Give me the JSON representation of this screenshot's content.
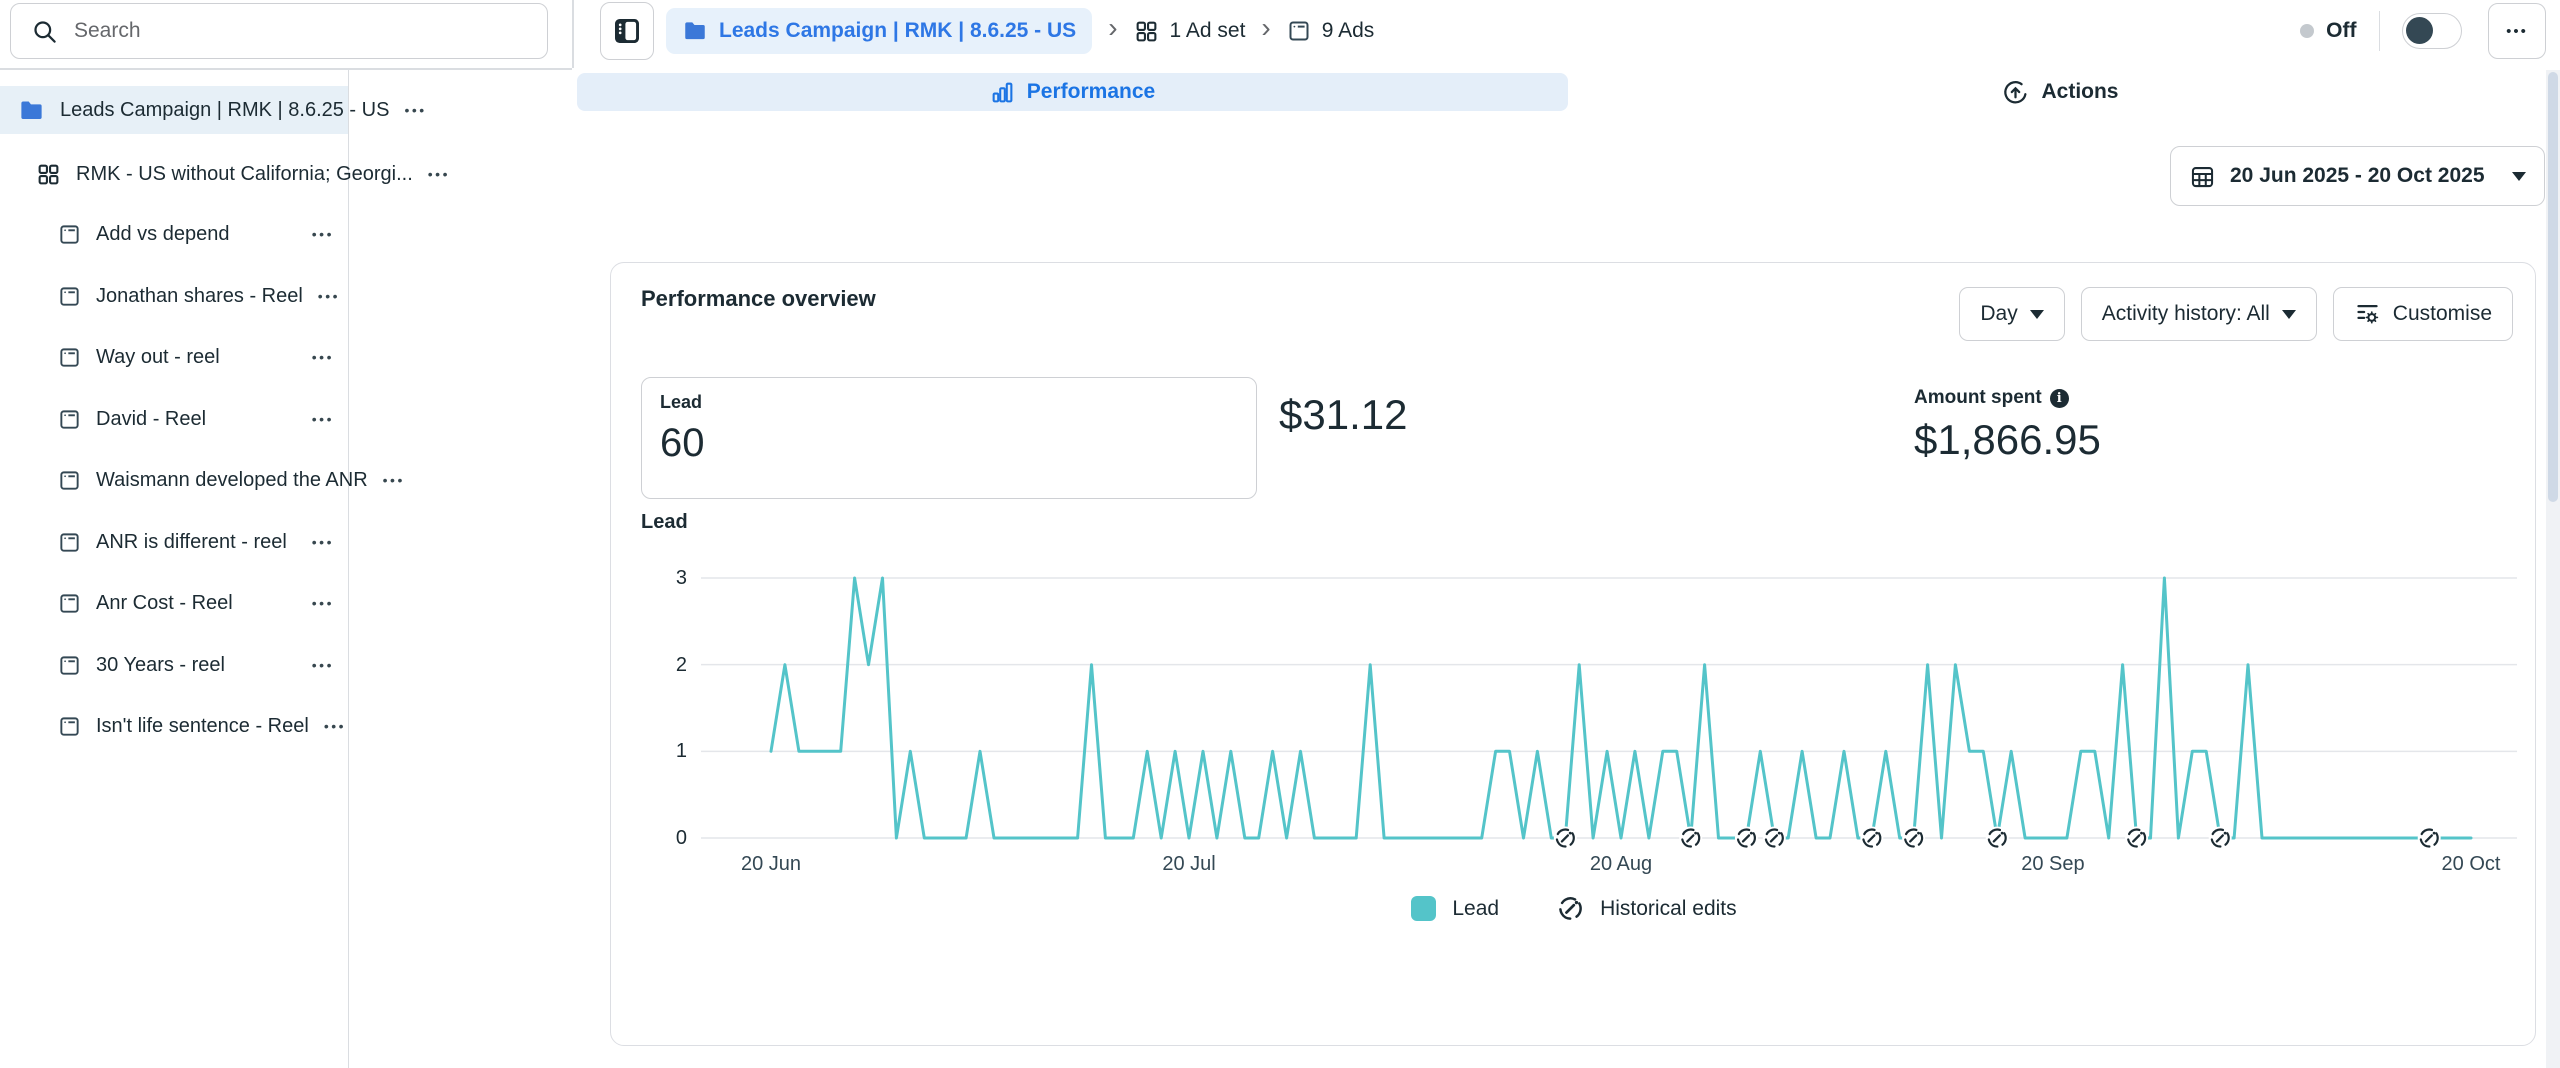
{
  "topbar": {
    "search": {
      "placeholder": "Search"
    },
    "breadcrumb": {
      "campaign": "Leads Campaign | RMK | 8.6.25 - US",
      "adset_count": "1 Ad set",
      "ads_count": "9 Ads"
    },
    "status": {
      "label": "Off",
      "enabled": false
    },
    "icons": {
      "more": "•••"
    }
  },
  "sidebar": {
    "campaign": {
      "label": "Leads Campaign | RMK | 8.6.25 - US",
      "selected": true
    },
    "adset": {
      "label": "RMK - US without California; Georgi..."
    },
    "ads": [
      "Add vs depend",
      "Jonathan shares - Reel",
      "Way out - reel",
      "David - Reel",
      "Waismann developed the ANR",
      "ANR is different - reel",
      "Anr Cost - Reel",
      "30 Years - reel",
      "Isn't life sentence - Reel"
    ]
  },
  "tabs": {
    "performance": "Performance",
    "actions": "Actions",
    "active": "Performance"
  },
  "date_range": {
    "label": "20 Jun 2025 - 20 Oct 2025"
  },
  "overview": {
    "title": "Performance overview",
    "granularity_button": "Day",
    "activity_button": "Activity history: All",
    "customise_button": "Customise",
    "lead_metric": {
      "label": "Lead",
      "value": "60"
    },
    "cost_value": "$31.12",
    "amount_spent": {
      "label": "Amount spent",
      "value": "$1,866.95"
    },
    "chart_label": "Lead",
    "legend": {
      "lead": "Lead",
      "historical": "Historical edits"
    }
  },
  "chart_data": {
    "type": "line",
    "title": "Lead",
    "xlabel": "",
    "ylabel": "Lead",
    "x": {
      "start_label": "20 Jun",
      "end_label": "20 Oct",
      "tick_labels": [
        "20 Jun",
        "20 Jul",
        "20 Aug",
        "20 Sep",
        "20 Oct"
      ],
      "tick_day_indices": [
        0,
        30,
        61,
        92,
        122
      ],
      "unit": "day"
    },
    "y": {
      "ticks": [
        0,
        1,
        2,
        3
      ],
      "min": 0,
      "max": 3
    },
    "series": [
      {
        "name": "Lead",
        "color": "#54c4c9",
        "values": [
          1,
          2,
          1,
          1,
          1,
          1,
          3,
          2,
          3,
          0,
          1,
          0,
          0,
          0,
          0,
          1,
          0,
          0,
          0,
          0,
          0,
          0,
          0,
          2,
          0,
          0,
          0,
          1,
          0,
          1,
          0,
          1,
          0,
          1,
          0,
          0,
          1,
          0,
          1,
          0,
          0,
          0,
          0,
          2,
          0,
          0,
          0,
          0,
          0,
          0,
          0,
          0,
          1,
          1,
          0,
          1,
          0,
          0,
          2,
          0,
          1,
          0,
          1,
          0,
          1,
          1,
          0,
          2,
          0,
          0,
          0,
          1,
          0,
          0,
          1,
          0,
          0,
          1,
          0,
          0,
          1,
          0,
          0,
          2,
          0,
          2,
          1,
          1,
          0,
          1,
          0,
          0,
          0,
          0,
          1,
          1,
          0,
          2,
          0,
          0,
          3,
          0,
          1,
          1,
          0,
          0,
          2,
          0,
          0,
          0,
          0,
          0,
          0,
          0,
          0,
          0,
          0,
          0,
          0,
          0,
          0,
          0,
          0
        ]
      }
    ],
    "historical_edit_day_indices": [
      57,
      66,
      70,
      72,
      79,
      82,
      88,
      98,
      104,
      119
    ],
    "legend": [
      "Lead",
      "Historical edits"
    ],
    "legend_position": "bottom",
    "grid": true
  },
  "colors": {
    "accent_teal": "#54c4c9",
    "link_blue": "#2e77e5",
    "tab_active_bg": "#e4eef9",
    "selected_row_bg": "#e7f0f7",
    "breadcrumb_chip_bg": "#e7f1fb",
    "text_dark": "#1c2b33",
    "text_secondary": "#65676b",
    "border": "#ced0d4",
    "divider": "#dadde1",
    "grid_line": "#e4e6ea"
  }
}
